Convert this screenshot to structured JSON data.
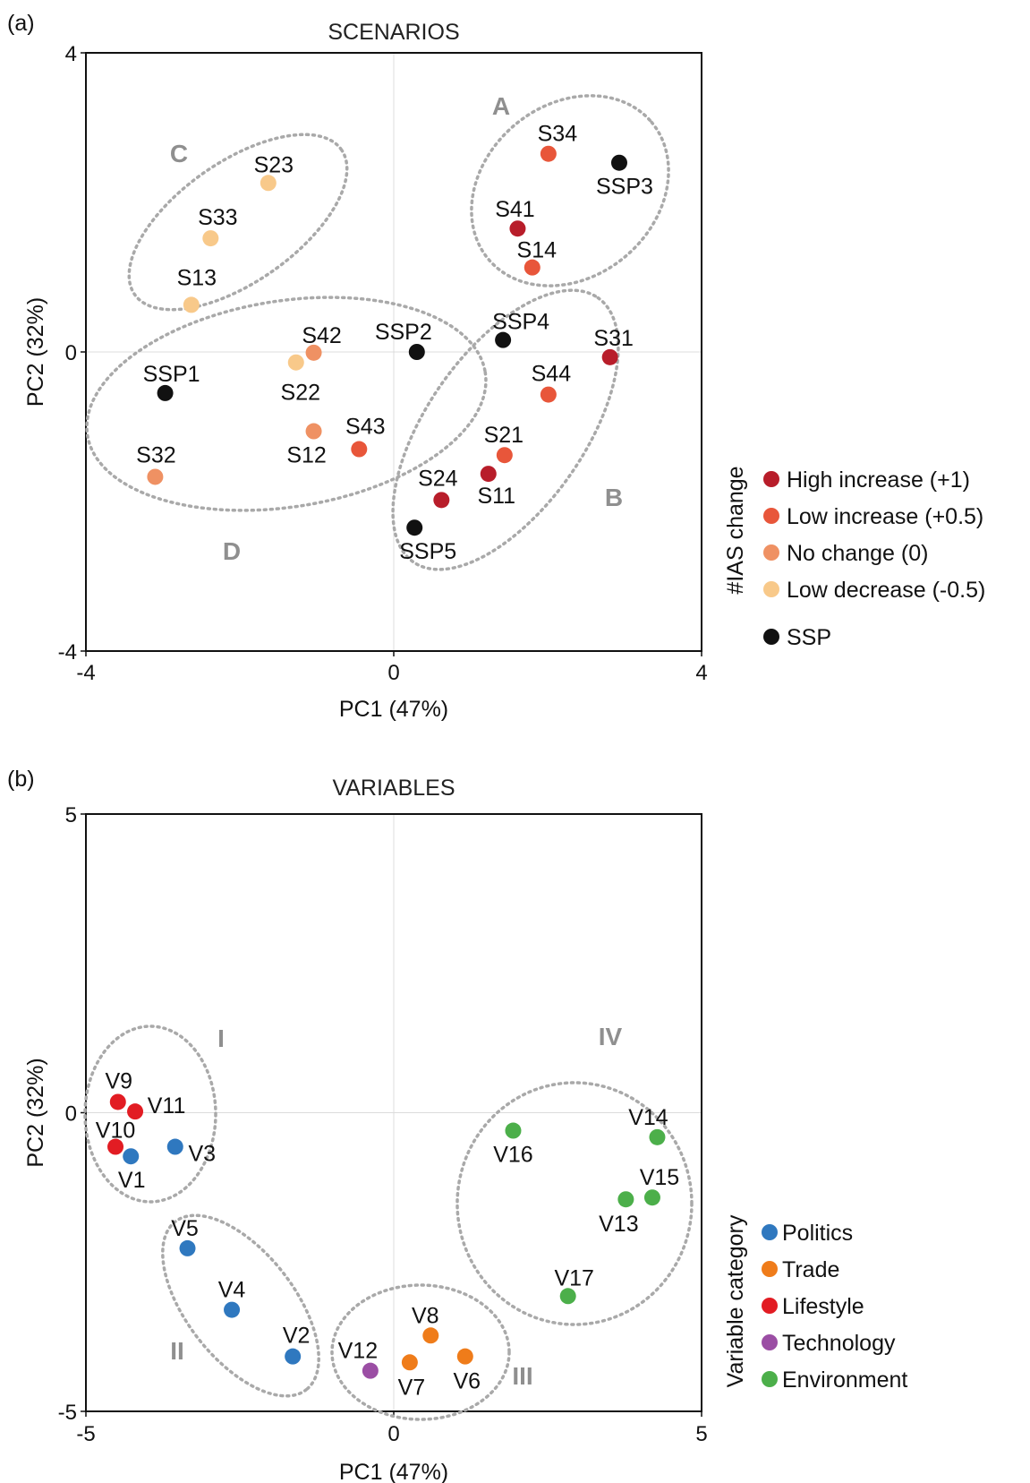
{
  "panels": [
    {
      "panel_label": "(a)",
      "chart_data": {
        "type": "scatter",
        "title": "SCENARIOS",
        "xlabel": "PC1 (47%)",
        "ylabel": "PC2 (32%)",
        "xlim": [
          -4,
          4
        ],
        "ylim": [
          -4,
          4
        ],
        "xticks": [
          "-4",
          "0",
          "4"
        ],
        "yticks": [
          "4",
          "0",
          "-4"
        ],
        "grid": "zero lines only",
        "legend_title": "#IAS change",
        "legend": [
          {
            "label": "High increase (+1)",
            "color": "#b81d2a"
          },
          {
            "label": "Low increase (+0.5)",
            "color": "#e8563a"
          },
          {
            "label": "No change (0)",
            "color": "#ef9163"
          },
          {
            "label": "Low decrease (-0.5)",
            "color": "#f8c98a"
          },
          {
            "label": "SSP",
            "color": "#111111"
          }
        ],
        "points": [
          {
            "label": "SSP1",
            "x": -2.97,
            "y": -0.55,
            "group": 4
          },
          {
            "label": "SSP2",
            "x": 0.3,
            "y": 0.0,
            "group": 4
          },
          {
            "label": "SSP3",
            "x": 2.93,
            "y": 2.53,
            "group": 4
          },
          {
            "label": "SSP4",
            "x": 1.42,
            "y": 0.16,
            "group": 4
          },
          {
            "label": "SSP5",
            "x": 0.27,
            "y": -2.35,
            "group": 4
          },
          {
            "label": "S11",
            "x": 1.23,
            "y": -1.63,
            "group": 0
          },
          {
            "label": "S12",
            "x": -1.04,
            "y": -1.06,
            "group": 2
          },
          {
            "label": "S13",
            "x": -2.63,
            "y": 0.63,
            "group": 3
          },
          {
            "label": "S14",
            "x": 1.8,
            "y": 1.13,
            "group": 1
          },
          {
            "label": "S21",
            "x": 1.44,
            "y": -1.38,
            "group": 1
          },
          {
            "label": "S22",
            "x": -1.27,
            "y": -0.14,
            "group": 3
          },
          {
            "label": "S23",
            "x": -1.63,
            "y": 2.26,
            "group": 3
          },
          {
            "label": "S24",
            "x": 0.62,
            "y": -1.98,
            "group": 0
          },
          {
            "label": "S31",
            "x": 2.81,
            "y": -0.07,
            "group": 0
          },
          {
            "label": "S32",
            "x": -3.1,
            "y": -1.67,
            "group": 2
          },
          {
            "label": "S33",
            "x": -2.38,
            "y": 1.52,
            "group": 3
          },
          {
            "label": "S34",
            "x": 2.01,
            "y": 2.65,
            "group": 1
          },
          {
            "label": "S41",
            "x": 1.61,
            "y": 1.65,
            "group": 0
          },
          {
            "label": "S42",
            "x": -1.04,
            "y": -0.01,
            "group": 2
          },
          {
            "label": "S43",
            "x": -0.45,
            "y": -1.3,
            "group": 1
          },
          {
            "label": "S44",
            "x": 2.01,
            "y": -0.57,
            "group": 1
          }
        ],
        "cluster_labels": [
          "A",
          "B",
          "C",
          "D"
        ]
      }
    },
    {
      "panel_label": "(b)",
      "chart_data": {
        "type": "scatter",
        "title": "VARIABLES",
        "xlabel": "PC1 (47%)",
        "ylabel": "PC2 (32%)",
        "xlim": [
          -5,
          5
        ],
        "ylim": [
          -5,
          5
        ],
        "xticks": [
          "-5",
          "0",
          "5"
        ],
        "yticks": [
          "5",
          "0",
          "-5"
        ],
        "grid": "zero lines only",
        "legend_title": "Variable category",
        "legend": [
          {
            "label": "Politics",
            "color": "#2f78bf"
          },
          {
            "label": "Trade",
            "color": "#ef7c1a"
          },
          {
            "label": "Lifestyle",
            "color": "#e21c23"
          },
          {
            "label": "Technology",
            "color": "#9b4ea4"
          },
          {
            "label": "Environment",
            "color": "#4caf4a"
          }
        ],
        "points": [
          {
            "label": "V1",
            "x": -4.27,
            "y": -0.73,
            "group": 0
          },
          {
            "label": "V2",
            "x": -1.64,
            "y": -4.08,
            "group": 0
          },
          {
            "label": "V3",
            "x": -3.55,
            "y": -0.57,
            "group": 0
          },
          {
            "label": "V4",
            "x": -2.63,
            "y": -3.3,
            "group": 0
          },
          {
            "label": "V5",
            "x": -3.35,
            "y": -2.27,
            "group": 0
          },
          {
            "label": "V6",
            "x": 1.16,
            "y": -4.08,
            "group": 1
          },
          {
            "label": "V7",
            "x": 0.26,
            "y": -4.18,
            "group": 1
          },
          {
            "label": "V8",
            "x": 0.6,
            "y": -3.73,
            "group": 1
          },
          {
            "label": "V9",
            "x": -4.48,
            "y": 0.18,
            "group": 2
          },
          {
            "label": "V10",
            "x": -4.52,
            "y": -0.57,
            "group": 2
          },
          {
            "label": "V11",
            "x": -4.2,
            "y": 0.02,
            "group": 2
          },
          {
            "label": "V12",
            "x": -0.38,
            "y": -4.32,
            "group": 3
          },
          {
            "label": "V13",
            "x": 3.77,
            "y": -1.45,
            "group": 4
          },
          {
            "label": "V14",
            "x": 4.28,
            "y": -0.41,
            "group": 4
          },
          {
            "label": "V15",
            "x": 4.2,
            "y": -1.42,
            "group": 4
          },
          {
            "label": "V16",
            "x": 1.94,
            "y": -0.3,
            "group": 4
          },
          {
            "label": "V17",
            "x": 2.83,
            "y": -3.07,
            "group": 4
          }
        ],
        "cluster_labels": [
          "I",
          "II",
          "III",
          "IV"
        ]
      }
    }
  ]
}
